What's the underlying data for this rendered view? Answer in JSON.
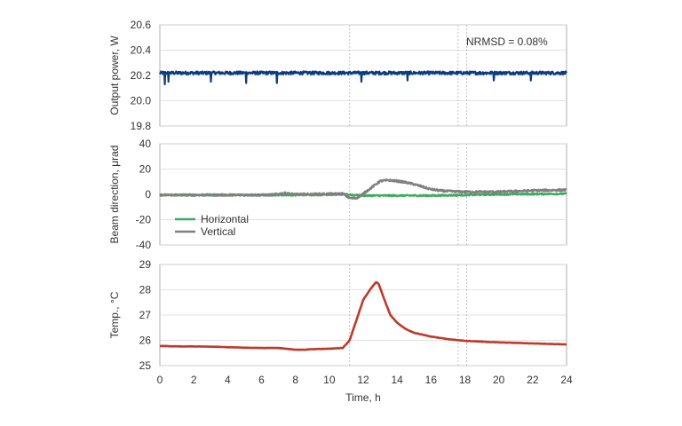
{
  "figure": {
    "xlabel": "Time, h",
    "x_ticks": [
      0,
      2,
      4,
      6,
      8,
      10,
      12,
      14,
      16,
      18,
      20,
      22,
      24
    ],
    "xlim": [
      0,
      24
    ],
    "vlines": [
      11.2,
      17.6,
      18.1
    ]
  },
  "chart_data": [
    {
      "type": "line",
      "ylabel": "Output power, W",
      "ylim": [
        19.8,
        20.6
      ],
      "y_ticks": [
        "19.8",
        "20.0",
        "20.2",
        "20.4",
        "20.6"
      ],
      "grid": "horizontal",
      "annotation": "NRMSD = 0.08%",
      "series": [
        {
          "name": "",
          "color": "#0b3d7e",
          "style": "noisy",
          "noise_amp": 0.012,
          "spikes": [
            [
              0.3,
              20.13
            ],
            [
              0.5,
              20.15
            ],
            [
              3.0,
              20.15
            ],
            [
              5.1,
              20.14
            ],
            [
              6.9,
              20.14
            ],
            [
              11.9,
              20.15
            ],
            [
              14.6,
              20.16
            ],
            [
              19.7,
              20.16
            ],
            [
              21.9,
              20.16
            ]
          ],
          "x": [
            0,
            24
          ],
          "y": [
            20.22,
            20.22
          ]
        }
      ]
    },
    {
      "type": "line",
      "ylabel": "Beam direction, μrad",
      "ylim": [
        -40,
        40
      ],
      "y_ticks": [
        "-40",
        "-20",
        "0",
        "20",
        "40"
      ],
      "grid": "horizontal",
      "legend": "left",
      "series": [
        {
          "name": "Horizontal",
          "color": "#3daa5c",
          "style": "noisy",
          "noise_amp": 0.6,
          "x": [
            0,
            4,
            8,
            11,
            12,
            16,
            20,
            24
          ],
          "y": [
            -0.5,
            -0.5,
            -0.5,
            0,
            -1,
            -1,
            0,
            0.5
          ]
        },
        {
          "name": "Vertical",
          "color": "#808080",
          "style": "noisy",
          "noise_amp": 0.8,
          "x": [
            0,
            6.5,
            7.4,
            8,
            10,
            10.8,
            11.2,
            11.6,
            12,
            12.6,
            13.0,
            13.5,
            14.0,
            14.5,
            15.0,
            15.5,
            16.0,
            16.5,
            17.0,
            18.0,
            20.0,
            22.0,
            24.0
          ],
          "y": [
            -0.5,
            -0.5,
            1.0,
            0,
            0.3,
            0.5,
            -3.0,
            -3.0,
            0.5,
            6.5,
            10.5,
            11.2,
            10.5,
            9.5,
            8.0,
            6.0,
            4.0,
            3.0,
            2.5,
            2.0,
            2.0,
            3.0,
            3.5
          ]
        }
      ]
    },
    {
      "type": "line",
      "ylabel": "Temp., °C",
      "ylim": [
        25,
        29
      ],
      "y_ticks": [
        "25",
        "26",
        "27",
        "28",
        "29"
      ],
      "grid": "horizontal",
      "series": [
        {
          "name": "",
          "color": "#c0392b",
          "style": "smooth",
          "x": [
            0,
            1,
            2,
            3,
            4,
            5,
            6,
            7,
            7.6,
            8.0,
            8.5,
            9,
            10,
            10.8,
            11.2,
            11.6,
            12.0,
            12.4,
            12.75,
            12.9,
            13.2,
            13.6,
            14.0,
            14.5,
            15.0,
            16.0,
            17.0,
            18.0,
            20.0,
            22.0,
            24.0
          ],
          "y": [
            25.78,
            25.76,
            25.76,
            25.75,
            25.73,
            25.71,
            25.7,
            25.7,
            25.66,
            25.63,
            25.63,
            25.65,
            25.67,
            25.7,
            26.0,
            26.8,
            27.6,
            28.0,
            28.3,
            28.25,
            27.7,
            27.0,
            26.7,
            26.45,
            26.3,
            26.15,
            26.05,
            25.98,
            25.92,
            25.88,
            25.84
          ]
        }
      ]
    }
  ]
}
